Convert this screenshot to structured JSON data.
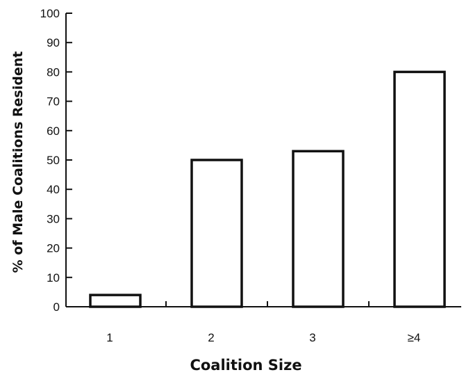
{
  "chart_data": {
    "type": "bar",
    "categories": [
      "1",
      "2",
      "3",
      "≥4"
    ],
    "values": [
      4,
      50,
      53,
      80
    ],
    "xlabel": "Coalition Size",
    "ylabel": "% of Male Coalitions Resident",
    "ylim": [
      0,
      100
    ],
    "yticks": [
      "0",
      "10",
      "20",
      "30",
      "40",
      "50",
      "60",
      "70",
      "80",
      "90",
      "100"
    ],
    "grid": false,
    "bar_fill": "#ffffff",
    "bar_stroke": "#111111"
  }
}
